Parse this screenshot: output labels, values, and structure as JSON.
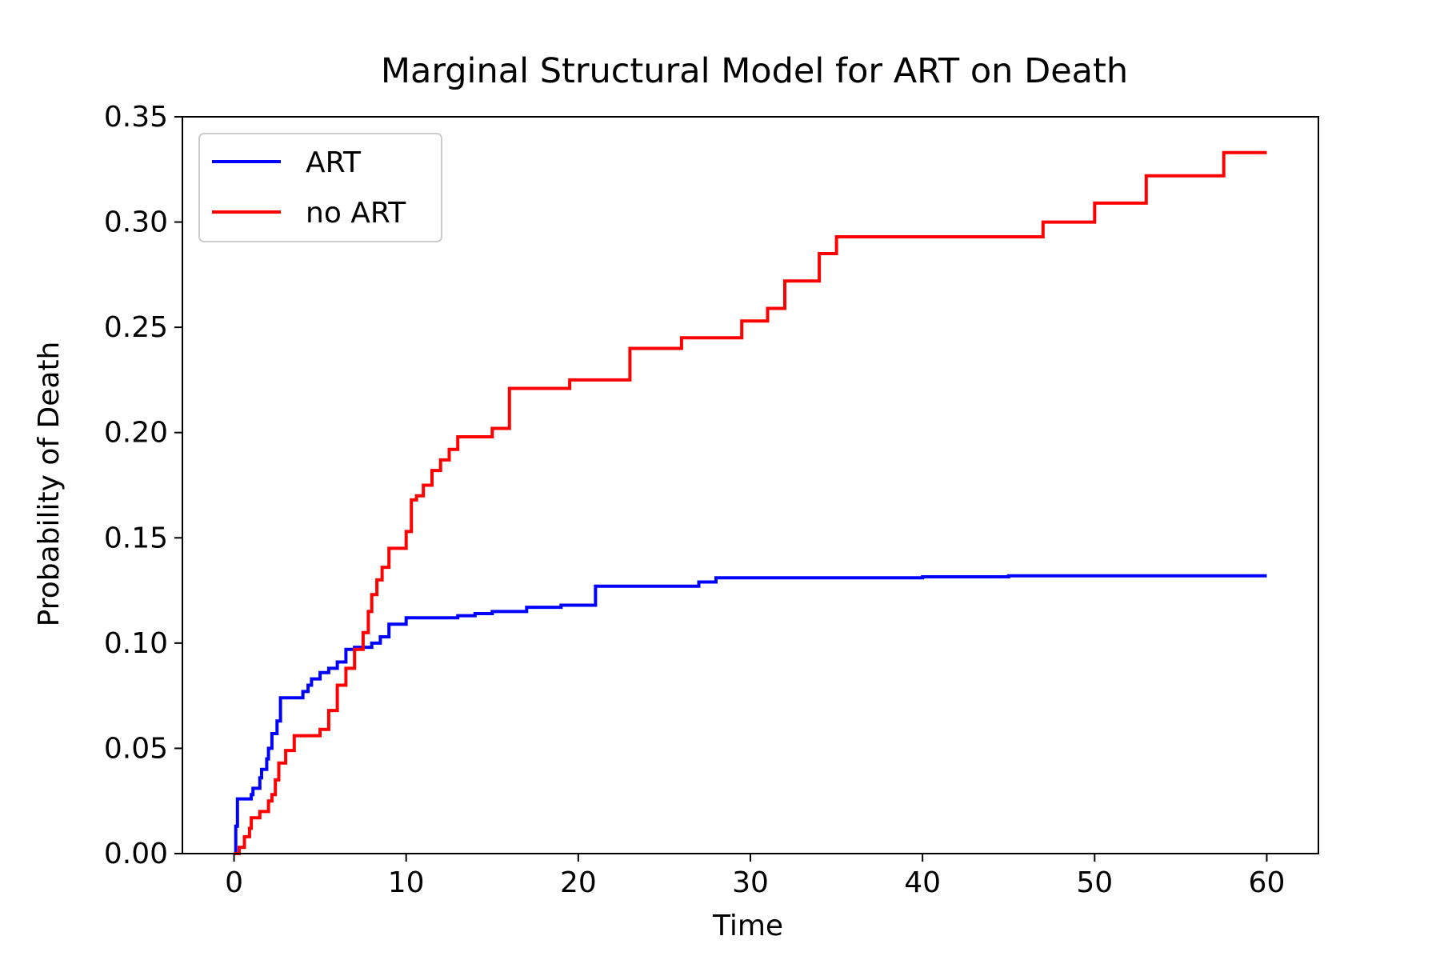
{
  "chart_data": {
    "type": "line",
    "title": "Marginal Structural Model for ART on Death",
    "xlabel": "Time",
    "ylabel": "Probability of Death",
    "xlim": [
      -3,
      63
    ],
    "ylim": [
      0,
      0.35
    ],
    "xticks": [
      0,
      10,
      20,
      30,
      40,
      50,
      60
    ],
    "xtick_labels": [
      "0",
      "10",
      "20",
      "30",
      "40",
      "50",
      "60"
    ],
    "yticks": [
      0,
      0.05,
      0.1,
      0.15,
      0.2,
      0.25,
      0.3,
      0.35
    ],
    "ytick_labels": [
      "0.00",
      "0.05",
      "0.10",
      "0.15",
      "0.20",
      "0.25",
      "0.30",
      "0.35"
    ],
    "grid": false,
    "legend_position": "upper-left",
    "step": "post",
    "series": [
      {
        "name": "ART",
        "color": "#0000ff",
        "x": [
          0,
          0.1,
          0.2,
          1.0,
          1.1,
          1.5,
          1.6,
          1.9,
          2.0,
          2.2,
          2.5,
          2.7,
          4.0,
          4.3,
          4.5,
          5.0,
          5.5,
          6.0,
          6.5,
          7.0,
          8.0,
          8.5,
          9.0,
          10.0,
          13.0,
          14.0,
          15.0,
          17.0,
          19.0,
          21.0,
          27.0,
          28.0,
          40.0,
          45.0,
          60.0
        ],
        "values": [
          0,
          0.013,
          0.026,
          0.028,
          0.031,
          0.036,
          0.04,
          0.045,
          0.05,
          0.057,
          0.063,
          0.074,
          0.077,
          0.08,
          0.083,
          0.086,
          0.088,
          0.091,
          0.097,
          0.098,
          0.1,
          0.103,
          0.109,
          0.112,
          0.113,
          0.114,
          0.115,
          0.117,
          0.118,
          0.127,
          0.129,
          0.131,
          0.1315,
          0.132,
          0.132
        ]
      },
      {
        "name": "no ART",
        "color": "#ff0000",
        "x": [
          0,
          0.3,
          0.6,
          0.9,
          1.0,
          1.5,
          2.0,
          2.2,
          2.4,
          2.6,
          3.0,
          3.5,
          5.0,
          5.5,
          6.0,
          6.5,
          7.0,
          7.5,
          7.8,
          8.0,
          8.3,
          8.6,
          9.0,
          10.0,
          10.3,
          10.6,
          11.0,
          11.5,
          12.0,
          12.5,
          13.0,
          15.0,
          16.0,
          19.5,
          23.0,
          26.0,
          29.5,
          31.0,
          32.0,
          34.0,
          35.0,
          47.0,
          50.0,
          53.0,
          57.5,
          60.0
        ],
        "values": [
          0,
          0.003,
          0.008,
          0.012,
          0.017,
          0.02,
          0.025,
          0.028,
          0.035,
          0.043,
          0.049,
          0.056,
          0.059,
          0.068,
          0.08,
          0.088,
          0.097,
          0.105,
          0.115,
          0.123,
          0.13,
          0.136,
          0.145,
          0.153,
          0.168,
          0.17,
          0.175,
          0.182,
          0.187,
          0.192,
          0.198,
          0.202,
          0.221,
          0.225,
          0.24,
          0.245,
          0.253,
          0.259,
          0.272,
          0.285,
          0.293,
          0.3,
          0.309,
          0.322,
          0.333,
          0.333
        ]
      }
    ]
  }
}
